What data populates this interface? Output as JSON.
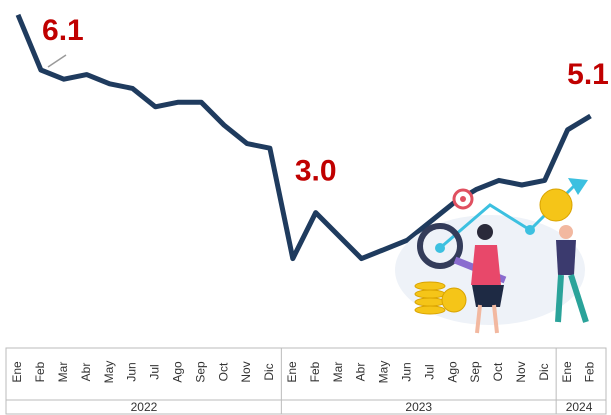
{
  "chart_data": {
    "type": "line",
    "category_groups": [
      {
        "label": "2022",
        "categories": [
          "Ene",
          "Feb",
          "Mar",
          "Abr",
          "May",
          "Jun",
          "Jul",
          "Ago",
          "Sep",
          "Oct",
          "Nov",
          "Dic"
        ]
      },
      {
        "label": "2023",
        "categories": [
          "Ene",
          "Feb",
          "Mar",
          "Abr",
          "May",
          "Jun",
          "Jul",
          "Ago",
          "Sep",
          "Oct",
          "Nov",
          "Dic"
        ]
      },
      {
        "label": "2024",
        "categories": [
          "Ene",
          "Feb"
        ]
      }
    ],
    "values": [
      7.3,
      6.1,
      5.9,
      6.0,
      5.8,
      5.7,
      5.3,
      5.4,
      5.4,
      4.9,
      4.5,
      4.4,
      2.0,
      3.0,
      2.5,
      2.0,
      2.2,
      2.4,
      2.8,
      3.2,
      3.5,
      3.7,
      3.6,
      3.7,
      4.8,
      5.1
    ],
    "value_labels": [
      null,
      "6.1",
      null,
      null,
      null,
      null,
      null,
      null,
      null,
      null,
      null,
      null,
      null,
      "3.0",
      null,
      null,
      null,
      null,
      null,
      null,
      null,
      null,
      null,
      null,
      null,
      "5.1"
    ],
    "color": "#1f3b5e",
    "label_color": "#c00000",
    "ylim": [
      1.6,
      7.6
    ],
    "grid": false
  }
}
